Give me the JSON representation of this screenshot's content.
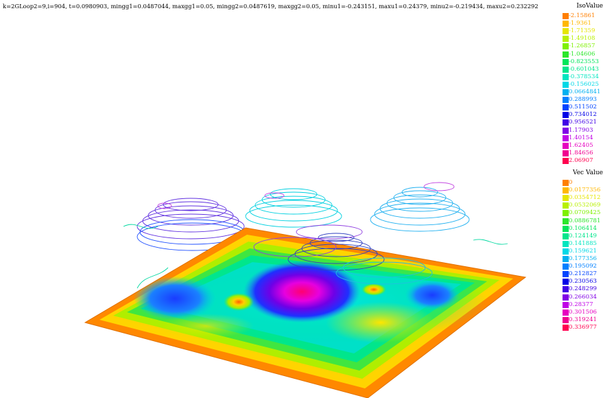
{
  "header": {
    "status_line": "k=2GLoop2=9,i=904, t=0.0980903,  mingg1=0.0487044,  maxgg1=0.05,  mingg2=0.0487619,  maxgg2=0.05,  minu1=-0.243151,  maxu1=0.24379,  minu2=-0.219434,  maxu2=0.232292"
  },
  "iso_legend": {
    "title": "IsoValue",
    "entries": [
      {
        "label": "-2.15861",
        "color": "#ff7f00"
      },
      {
        "label": "-1.9361",
        "color": "#ffb800"
      },
      {
        "label": "-1.71359",
        "color": "#e6e600"
      },
      {
        "label": "-1.49108",
        "color": "#b8f000"
      },
      {
        "label": "-1.26857",
        "color": "#7ff000"
      },
      {
        "label": "-1.04606",
        "color": "#2ce62c"
      },
      {
        "label": "-0.823553",
        "color": "#00e65a"
      },
      {
        "label": "-0.601043",
        "color": "#00e68c"
      },
      {
        "label": "-0.378534",
        "color": "#00e6c0"
      },
      {
        "label": "-0.156025",
        "color": "#00d8e6"
      },
      {
        "label": "0.0664841",
        "color": "#00b0f0"
      },
      {
        "label": "0.288993",
        "color": "#0080ff"
      },
      {
        "label": "0.511502",
        "color": "#0044ff"
      },
      {
        "label": "0.734012",
        "color": "#0000e6"
      },
      {
        "label": "0.956521",
        "color": "#4000e6"
      },
      {
        "label": "1.17903",
        "color": "#8000e6"
      },
      {
        "label": "1.40154",
        "color": "#c000e6"
      },
      {
        "label": "1.62405",
        "color": "#e600c0"
      },
      {
        "label": "1.84656",
        "color": "#f00090"
      },
      {
        "label": "2.06907",
        "color": "#ff0050"
      }
    ]
  },
  "vec_legend": {
    "title": "Vec Value",
    "entries": [
      {
        "label": "0",
        "color": "#ff7f00"
      },
      {
        "label": "0.0177356",
        "color": "#ffb800"
      },
      {
        "label": "0.0354712",
        "color": "#e6e600"
      },
      {
        "label": "0.0532069",
        "color": "#b8f000"
      },
      {
        "label": "0.0709425",
        "color": "#7ff000"
      },
      {
        "label": "0.0886781",
        "color": "#2ce62c"
      },
      {
        "label": "0.106414",
        "color": "#00e65a"
      },
      {
        "label": "0.124149",
        "color": "#00e68c"
      },
      {
        "label": "0.141885",
        "color": "#00e6c0"
      },
      {
        "label": "0.159621",
        "color": "#00d8e6"
      },
      {
        "label": "0.177356",
        "color": "#00b0f0"
      },
      {
        "label": "0.195092",
        "color": "#0080ff"
      },
      {
        "label": "0.212827",
        "color": "#0044ff"
      },
      {
        "label": "0.230563",
        "color": "#0000e6"
      },
      {
        "label": "0.248299",
        "color": "#4000e6"
      },
      {
        "label": "0.266034",
        "color": "#8000e6"
      },
      {
        "label": "0.28377",
        "color": "#c000e6"
      },
      {
        "label": "0.301506",
        "color": "#e600c0"
      },
      {
        "label": "0.319241",
        "color": "#f00090"
      },
      {
        "label": "0.336977",
        "color": "#ff0050"
      }
    ]
  }
}
